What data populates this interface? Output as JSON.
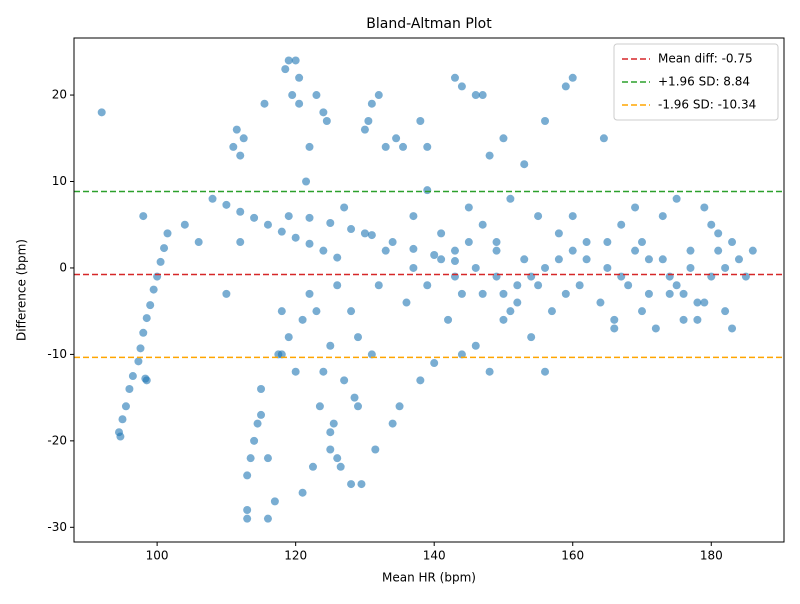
{
  "chart_data": {
    "type": "scatter",
    "title": "Bland-Altman Plot",
    "x_label": "Mean HR (bpm)",
    "y_label": "Difference (bpm)",
    "xlim": [
      88,
      190.5
    ],
    "ylim": [
      -31.7,
      26.6
    ],
    "xticks": [
      100,
      120,
      140,
      160,
      180
    ],
    "yticks": [
      -30,
      -20,
      -10,
      0,
      10,
      20
    ],
    "color": "#1f77b4",
    "legend": "upper right",
    "hlines": [
      {
        "label": "Mean diff: -0.75",
        "value": -0.75,
        "color": "#d62728"
      },
      {
        "label": "+1.96 SD: 8.84",
        "value": 8.84,
        "color": "#2ca02c"
      },
      {
        "label": "-1.96 SD: -10.34",
        "value": -10.34,
        "color": "#ffa500"
      }
    ],
    "x": [
      92,
      94.5,
      94.7,
      95,
      95.5,
      96,
      96.5,
      97.3,
      97.6,
      98,
      98.5,
      99,
      99.5,
      100,
      100.5,
      101,
      101.5,
      98,
      98.3,
      98.5,
      108,
      110,
      112,
      114,
      116,
      118,
      120,
      122,
      124,
      126,
      119,
      122,
      125,
      128,
      131,
      134,
      137,
      140,
      143,
      146,
      149,
      150,
      152,
      154,
      156,
      158,
      160,
      162,
      104,
      106,
      111,
      111.5,
      112,
      112.5,
      113,
      113,
      113,
      113.5,
      114,
      114.5,
      115,
      115,
      115.5,
      116,
      116,
      117,
      117.5,
      118,
      112,
      110,
      118.5,
      119,
      119.5,
      120,
      120.5,
      120.5,
      121,
      121.5,
      122,
      122.5,
      123,
      123.5,
      124,
      124.5,
      125,
      125,
      125.5,
      126,
      126.5,
      127,
      118,
      119,
      120,
      121,
      122,
      123,
      124,
      125,
      126,
      127,
      128,
      128.5,
      129,
      129.5,
      130,
      130.5,
      131,
      131.5,
      132,
      133,
      128,
      129,
      130,
      131,
      132,
      133,
      134,
      134.5,
      135,
      135.5,
      136,
      137,
      138,
      139,
      140,
      141,
      142,
      143,
      144,
      145,
      146,
      147,
      148,
      149,
      150,
      151,
      152,
      153,
      154,
      155,
      137,
      139,
      141,
      143,
      145,
      147,
      149,
      151,
      153,
      155,
      157,
      158,
      159,
      160,
      161,
      162,
      156,
      150,
      139,
      144,
      143,
      144,
      146,
      147,
      159,
      160,
      164.5,
      156,
      148,
      138,
      164,
      165,
      166,
      167,
      168,
      169,
      170,
      171,
      172,
      173,
      174,
      175,
      176,
      177,
      178,
      179,
      180,
      181,
      182,
      183,
      165,
      167,
      169,
      171,
      173,
      175,
      177,
      179,
      181,
      183,
      184,
      185,
      186,
      166,
      170,
      174,
      178,
      182,
      180,
      176
    ],
    "values": [
      18,
      -19,
      -19.5,
      -17.5,
      -16,
      -14,
      -12.5,
      -10.8,
      -9.3,
      -7.5,
      -5.8,
      -4.3,
      -2.5,
      -1,
      0.7,
      2.3,
      4,
      6,
      -12.8,
      -13,
      8,
      7.3,
      6.5,
      5.8,
      5,
      4.2,
      3.5,
      2.8,
      2,
      1.2,
      6,
      5.8,
      5.2,
      4.5,
      3.8,
      3,
      2.2,
      1.5,
      0.8,
      0,
      -1,
      -3,
      -2,
      -1,
      0,
      1,
      2,
      3,
      5,
      3,
      14,
      16,
      13,
      15,
      -29,
      -28,
      -24,
      -22,
      -20,
      -18,
      -17,
      -14,
      19,
      -29,
      -22,
      -27,
      -10,
      -5,
      3,
      -3,
      23,
      24,
      20,
      24,
      22,
      19,
      -26,
      10,
      14,
      -23,
      20,
      -16,
      18,
      17,
      -21,
      -19,
      -18,
      -22,
      -23,
      7,
      -10,
      -8,
      -12,
      -6,
      -3,
      -5,
      -12,
      -9,
      -2,
      -13,
      -25,
      -15,
      -16,
      -25,
      16,
      17,
      19,
      -21,
      20,
      14,
      -5,
      -8,
      4,
      -10,
      -2,
      2,
      -18,
      15,
      -16,
      14,
      -4,
      6,
      -13,
      9,
      -11,
      4,
      -6,
      2,
      -3,
      7,
      -9,
      5,
      -12,
      3,
      -6,
      8,
      -4,
      12,
      -8,
      6,
      0,
      -2,
      1,
      -1,
      3,
      -3,
      2,
      -5,
      1,
      -2,
      -5,
      4,
      -3,
      6,
      -2,
      1,
      -12,
      15,
      14,
      -10,
      22,
      21,
      20,
      20,
      21,
      22,
      15,
      17,
      13,
      17,
      -4,
      3,
      -6,
      5,
      -2,
      7,
      -5,
      1,
      -7,
      6,
      -3,
      8,
      -6,
      2,
      -4,
      7,
      -1,
      4,
      -5,
      3,
      0,
      -1,
      2,
      -3,
      1,
      -2,
      0,
      -4,
      2,
      -7,
      1,
      -1,
      2,
      -7,
      3,
      -1,
      -6,
      0,
      5,
      -3
    ]
  }
}
